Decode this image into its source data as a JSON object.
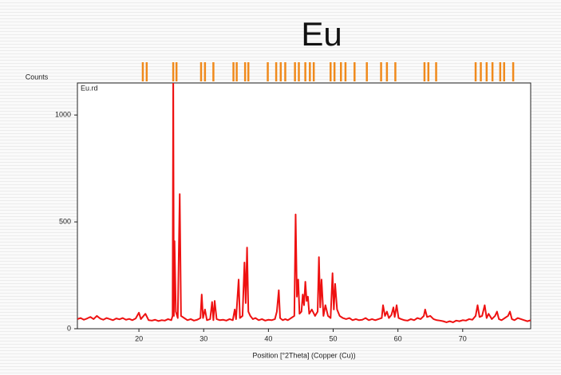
{
  "chart_data": {
    "type": "line",
    "title": "Eu",
    "y_label": "Counts",
    "x_label": "Position [°2Theta] (Copper (Cu))",
    "series_label": "Eu.rd",
    "color": "#ee1111",
    "reference_color": "#f08a1c",
    "xlim": [
      10.5,
      80.5
    ],
    "xticks": [
      20,
      30,
      40,
      50,
      60,
      70
    ],
    "ylim": [
      0,
      1150
    ],
    "yticks": [
      0,
      500,
      1000
    ],
    "x": [
      10.5,
      11,
      11.5,
      12,
      12.5,
      13,
      13.5,
      14,
      14.5,
      15,
      15.5,
      16,
      16.5,
      17,
      17.5,
      18,
      18.5,
      19,
      19.5,
      20,
      20.3,
      21,
      21.5,
      22,
      22.5,
      23,
      23.5,
      24,
      24.5,
      25,
      25.2,
      25.3,
      25.4,
      25.5,
      25.7,
      26.0,
      26.3,
      26.5,
      27,
      27.5,
      28,
      28.5,
      29,
      29.5,
      29.7,
      29.9,
      30.2,
      30.5,
      31,
      31.3,
      31.5,
      31.7,
      32,
      32.5,
      33,
      33.5,
      34,
      34.5,
      34.8,
      35,
      35.4,
      35.6,
      36,
      36.3,
      36.5,
      36.7,
      36.9,
      37.2,
      37.6,
      38,
      38.5,
      39,
      39.5,
      40,
      40.5,
      41,
      41.3,
      41.6,
      41.8,
      42.2,
      42.6,
      43,
      43.5,
      44,
      44.2,
      44.4,
      44.6,
      44.8,
      45.1,
      45.3,
      45.5,
      45.7,
      45.9,
      46.1,
      46.3,
      46.7,
      47.2,
      47.6,
      47.8,
      48,
      48.2,
      48.5,
      48.8,
      49.2,
      49.6,
      49.9,
      50.1,
      50.3,
      50.6,
      51,
      51.5,
      52,
      52.5,
      53,
      53.5,
      54,
      54.5,
      55,
      55.5,
      56,
      56.5,
      57,
      57.5,
      57.7,
      58,
      58.3,
      58.6,
      59,
      59.3,
      59.5,
      59.8,
      60.1,
      60.5,
      61,
      61.5,
      62,
      62.5,
      63,
      63.5,
      64,
      64.2,
      64.5,
      65,
      65.5,
      66,
      66.5,
      67,
      67.5,
      68,
      68.5,
      69,
      69.5,
      70,
      70.5,
      71,
      71.5,
      72,
      72.3,
      72.6,
      73,
      73.4,
      73.7,
      74,
      74.5,
      75,
      75.3,
      75.6,
      76,
      76.5,
      77,
      77.3,
      77.6,
      78,
      78.5,
      79,
      79.5,
      80,
      80.5
    ],
    "values": [
      45,
      50,
      42,
      48,
      55,
      45,
      60,
      48,
      42,
      50,
      45,
      40,
      48,
      44,
      50,
      42,
      46,
      40,
      48,
      75,
      45,
      70,
      40,
      38,
      42,
      36,
      40,
      38,
      45,
      40,
      60,
      1200,
      60,
      410,
      80,
      50,
      630,
      60,
      50,
      40,
      45,
      38,
      42,
      50,
      160,
      50,
      90,
      40,
      45,
      125,
      40,
      130,
      45,
      40,
      42,
      38,
      45,
      40,
      90,
      45,
      230,
      50,
      60,
      310,
      120,
      380,
      80,
      60,
      45,
      50,
      40,
      45,
      38,
      42,
      40,
      45,
      80,
      180,
      50,
      40,
      45,
      40,
      50,
      60,
      535,
      150,
      230,
      70,
      80,
      160,
      110,
      220,
      130,
      150,
      70,
      90,
      60,
      80,
      335,
      100,
      230,
      60,
      110,
      60,
      50,
      260,
      90,
      210,
      90,
      60,
      50,
      45,
      50,
      40,
      45,
      40,
      42,
      50,
      40,
      45,
      40,
      45,
      50,
      110,
      60,
      80,
      50,
      65,
      100,
      55,
      110,
      50,
      45,
      40,
      38,
      45,
      40,
      50,
      45,
      60,
      90,
      55,
      60,
      45,
      40,
      38,
      35,
      30,
      35,
      30,
      38,
      35,
      40,
      38,
      45,
      42,
      60,
      110,
      55,
      60,
      110,
      50,
      70,
      45,
      60,
      80,
      45,
      40,
      50,
      60,
      80,
      45,
      40,
      50,
      45,
      40,
      35,
      40
    ],
    "reference_peaks": [
      20.6,
      21.2,
      25.3,
      25.8,
      29.6,
      30.2,
      31.5,
      34.6,
      35.1,
      36.4,
      36.9,
      39.9,
      41.2,
      41.9,
      42.6,
      44.1,
      44.7,
      45.7,
      46.4,
      47.0,
      49.6,
      50.2,
      51.2,
      51.9,
      53.3,
      55.2,
      57.4,
      58.3,
      59.6,
      64.1,
      64.7,
      65.9,
      72.0,
      72.8,
      73.7,
      74.6,
      75.8,
      76.4,
      77.8
    ]
  }
}
